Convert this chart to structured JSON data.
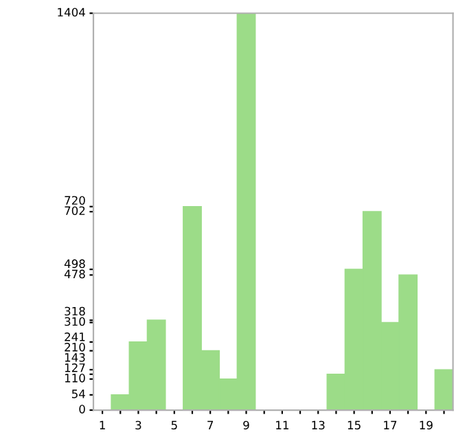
{
  "chart_data": {
    "type": "bar",
    "categories": [
      "1",
      null,
      "3",
      null,
      "5",
      null,
      "7",
      null,
      "9",
      null,
      "11",
      null,
      "13",
      null,
      "15",
      null,
      "17",
      null,
      "19",
      null
    ],
    "values": [
      0,
      54,
      241,
      318,
      0,
      720,
      210,
      110,
      1404,
      0,
      0,
      0,
      0,
      127,
      498,
      702,
      310,
      478,
      0,
      143
    ],
    "color": "#9cdc88",
    "ylim": [
      0,
      1404
    ],
    "yticks": [
      0,
      54,
      110,
      127,
      143,
      210,
      241,
      310,
      318,
      478,
      498,
      702,
      720,
      1404
    ],
    "grid": false
  }
}
